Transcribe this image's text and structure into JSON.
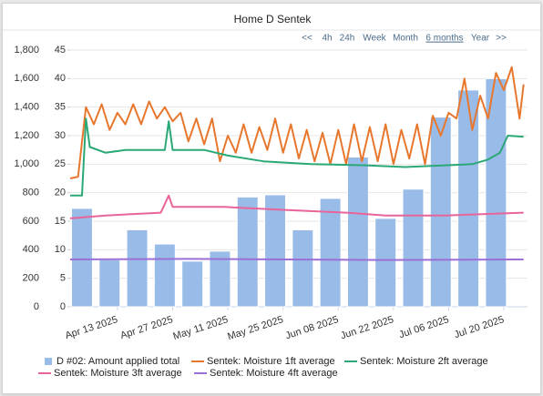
{
  "chart_data": {
    "type": "bar-line",
    "title": "Home D Sentek",
    "range_buttons": [
      "<<",
      "4h",
      "24h",
      "Week",
      "Month",
      "6 months",
      "Year",
      ">>"
    ],
    "selected_range": "6 months",
    "xlim": [
      "2025-04-01",
      "2025-07-26"
    ],
    "xticks": [
      {
        "value": "2025-04-13",
        "label": "Apr 13 2025"
      },
      {
        "value": "2025-04-27",
        "label": "Apr 27 2025"
      },
      {
        "value": "2025-05-11",
        "label": "May 11 2025"
      },
      {
        "value": "2025-05-25",
        "label": "May 25 2025"
      },
      {
        "value": "2025-06-08",
        "label": "Jun 08 2025"
      },
      {
        "value": "2025-06-22",
        "label": "Jun 22 2025"
      },
      {
        "value": "2025-07-06",
        "label": "Jul 06 2025"
      },
      {
        "value": "2025-07-20",
        "label": "Jul 20 2025"
      }
    ],
    "ylim": [
      0,
      1800
    ],
    "yticks": [
      0,
      {
        "value": 200,
        "label": "200"
      },
      {
        "value": 400,
        "label": "400"
      },
      {
        "value": 600,
        "label": "600"
      },
      {
        "value": 800,
        "label": "800"
      },
      {
        "value": 1000,
        "label": "1,000"
      },
      {
        "value": 1200,
        "label": "1,200"
      },
      {
        "value": 1400,
        "label": "1,400"
      },
      {
        "value": 1600,
        "label": "1,600"
      },
      {
        "value": 1800,
        "label": "1,800"
      }
    ],
    "y2lim": [
      0,
      45
    ],
    "y2ticks": [
      0,
      5,
      10,
      15,
      20,
      25,
      30,
      35,
      40,
      45
    ],
    "grid": true,
    "legend": "bottom",
    "series": [
      {
        "name": "D #02: Amount applied total",
        "type": "bar",
        "color": "#99bbe8",
        "x": [
          "2025-04-04",
          "2025-04-11",
          "2025-04-18",
          "2025-04-25",
          "2025-05-02",
          "2025-05-09",
          "2025-05-16",
          "2025-05-23",
          "2025-05-30",
          "2025-06-06",
          "2025-06-13",
          "2025-06-20",
          "2025-06-27",
          "2025-07-04",
          "2025-07-11",
          "2025-07-18"
        ],
        "values": [
          690,
          330,
          540,
          440,
          320,
          390,
          770,
          785,
          540,
          760,
          1050,
          620,
          825,
          1330,
          1520,
          1600
        ]
      },
      {
        "name": "Sentek: Moisture 1ft average",
        "type": "line",
        "axis": "y2",
        "color": "#e8772e",
        "x": [
          "2025-04-01",
          "2025-04-03",
          "2025-04-05",
          "2025-04-07",
          "2025-04-09",
          "2025-04-11",
          "2025-04-13",
          "2025-04-15",
          "2025-04-17",
          "2025-04-19",
          "2025-04-21",
          "2025-04-23",
          "2025-04-25",
          "2025-04-27",
          "2025-04-29",
          "2025-05-01",
          "2025-05-03",
          "2025-05-05",
          "2025-05-07",
          "2025-05-09",
          "2025-05-11",
          "2025-05-13",
          "2025-05-15",
          "2025-05-17",
          "2025-05-19",
          "2025-05-21",
          "2025-05-23",
          "2025-05-25",
          "2025-05-27",
          "2025-05-29",
          "2025-05-31",
          "2025-06-02",
          "2025-06-04",
          "2025-06-06",
          "2025-06-08",
          "2025-06-10",
          "2025-06-12",
          "2025-06-14",
          "2025-06-16",
          "2025-06-18",
          "2025-06-20",
          "2025-06-22",
          "2025-06-24",
          "2025-06-26",
          "2025-06-28",
          "2025-06-30",
          "2025-07-02",
          "2025-07-04",
          "2025-07-06",
          "2025-07-08",
          "2025-07-10",
          "2025-07-12",
          "2025-07-14",
          "2025-07-16",
          "2025-07-18",
          "2025-07-20",
          "2025-07-22",
          "2025-07-24",
          "2025-07-25"
        ],
        "values": [
          22.5,
          22.8,
          35,
          32,
          35.5,
          31,
          34,
          32,
          35.5,
          32,
          36,
          33,
          35,
          32.5,
          34,
          29,
          33,
          28.5,
          33,
          25.5,
          30,
          27,
          32,
          27,
          31.5,
          27.5,
          33,
          27,
          32,
          26,
          31,
          25.5,
          30.5,
          25,
          31,
          25,
          32,
          25.5,
          31.5,
          25.5,
          32,
          25,
          31,
          26,
          32,
          25,
          33.5,
          30,
          34,
          33,
          40,
          31,
          37,
          33,
          41,
          38,
          42,
          33,
          39
        ]
      },
      {
        "name": "Sentek: Moisture 2ft average",
        "type": "line",
        "axis": "y2",
        "color": "#2aa876",
        "x": [
          "2025-04-01",
          "2025-04-04",
          "2025-04-05",
          "2025-04-06",
          "2025-04-10",
          "2025-04-15",
          "2025-04-25",
          "2025-04-26",
          "2025-04-27",
          "2025-05-05",
          "2025-05-11",
          "2025-05-20",
          "2025-06-01",
          "2025-06-15",
          "2025-06-25",
          "2025-07-05",
          "2025-07-12",
          "2025-07-16",
          "2025-07-19",
          "2025-07-21",
          "2025-07-25"
        ],
        "values": [
          19.5,
          19.5,
          33,
          28,
          27,
          27.5,
          27.5,
          32.5,
          27.5,
          27.5,
          26.5,
          25.5,
          25,
          24.8,
          24.5,
          24.8,
          25,
          25.8,
          27,
          30,
          29.8
        ]
      },
      {
        "name": "Sentek: Moisture 3ft average",
        "type": "line",
        "axis": "y2",
        "color": "#e8649a",
        "x": [
          "2025-04-01",
          "2025-04-10",
          "2025-04-24",
          "2025-04-26",
          "2025-04-27",
          "2025-05-10",
          "2025-05-25",
          "2025-06-10",
          "2025-06-20",
          "2025-07-05",
          "2025-07-25"
        ],
        "values": [
          15.5,
          16,
          16.5,
          19.5,
          17.5,
          17.5,
          17,
          16.5,
          16,
          16,
          16.5
        ]
      },
      {
        "name": "Sentek: Moisture 4ft average",
        "type": "line",
        "axis": "y2",
        "color": "#9b6fd6",
        "x": [
          "2025-04-01",
          "2025-05-01",
          "2025-05-25",
          "2025-06-20",
          "2025-07-25"
        ],
        "values": [
          8.3,
          8.4,
          8.3,
          8.2,
          8.3
        ]
      }
    ]
  }
}
